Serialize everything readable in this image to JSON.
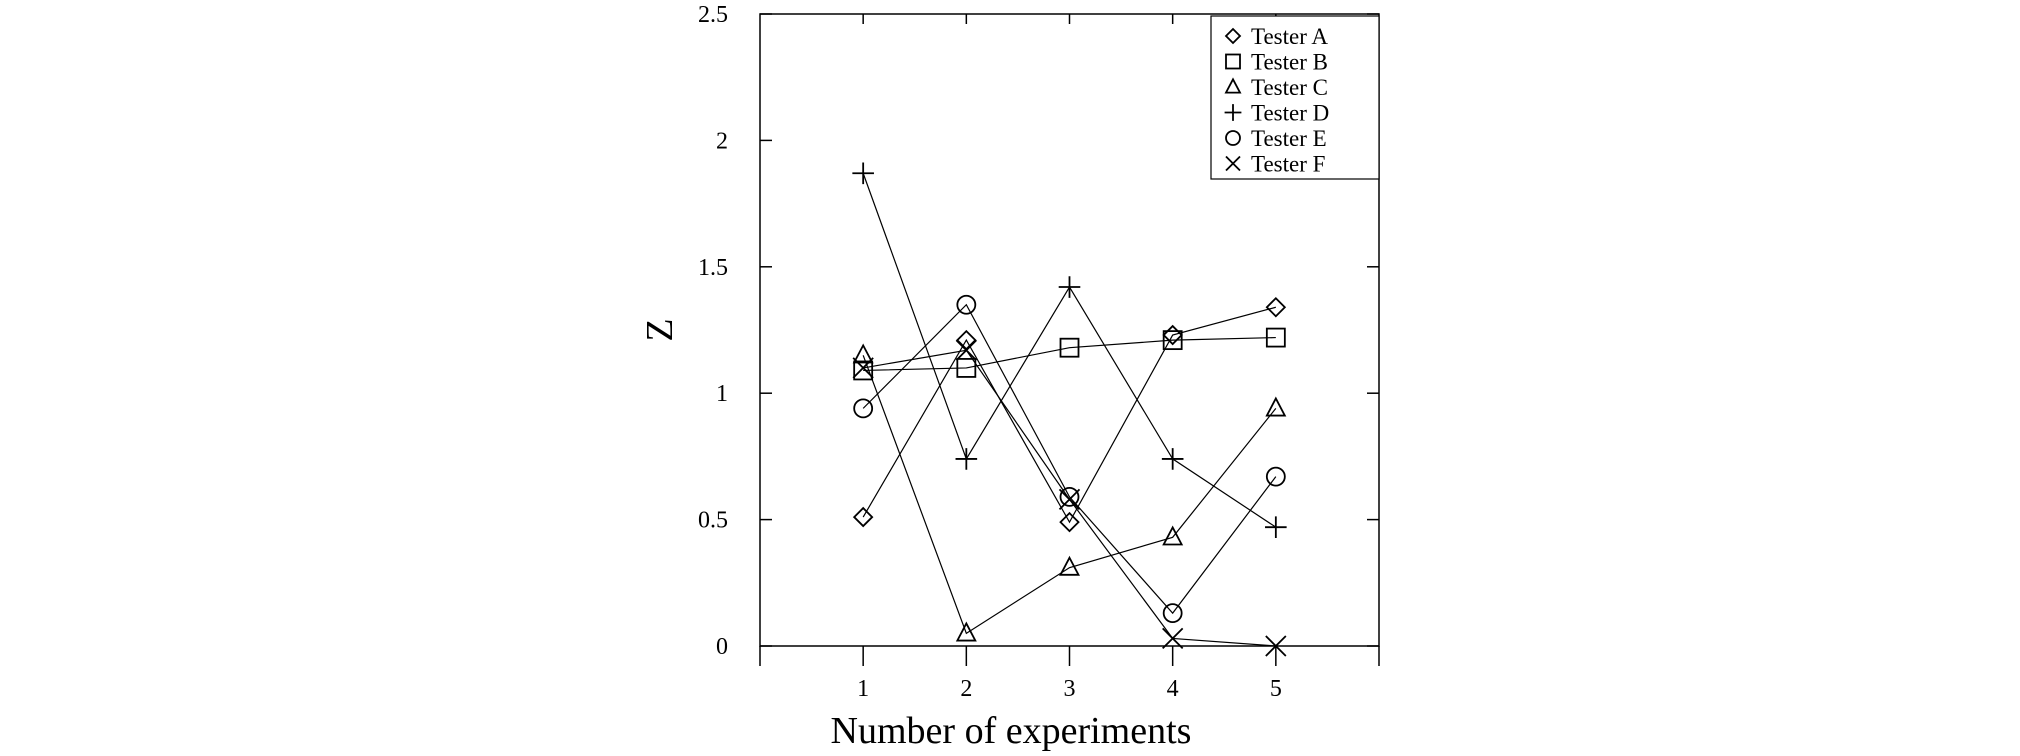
{
  "chart_data": {
    "type": "line",
    "xlabel": "Number of experiments",
    "ylabel": "Z",
    "xlim": [
      0,
      6
    ],
    "ylim": [
      0,
      2.5
    ],
    "x_ticks": [
      1,
      2,
      3,
      4,
      5
    ],
    "y_ticks": [
      0,
      0.5,
      1,
      1.5,
      2,
      2.5
    ],
    "x_tick_labels": [
      "1",
      "2",
      "3",
      "4",
      "5"
    ],
    "y_tick_labels": [
      "0",
      "0.5",
      "1",
      "1.5",
      "2",
      "2.5"
    ],
    "grid": false,
    "legend_position": "top-right",
    "x": [
      1,
      2,
      3,
      4,
      5
    ],
    "series": [
      {
        "name": "Tester A",
        "marker": "diamond",
        "values": [
          0.51,
          1.21,
          0.49,
          1.23,
          1.34
        ]
      },
      {
        "name": "Tester B",
        "marker": "square",
        "values": [
          1.09,
          1.1,
          1.18,
          1.21,
          1.22
        ]
      },
      {
        "name": "Tester C",
        "marker": "triangle",
        "values": [
          1.15,
          0.05,
          0.31,
          0.43,
          0.94
        ]
      },
      {
        "name": "Tester D",
        "marker": "plus",
        "values": [
          1.87,
          0.74,
          1.42,
          0.74,
          0.47
        ]
      },
      {
        "name": "Tester E",
        "marker": "circle",
        "values": [
          0.94,
          1.35,
          0.59,
          0.13,
          0.67
        ]
      },
      {
        "name": "Tester F",
        "marker": "x",
        "values": [
          1.1,
          1.17,
          0.58,
          0.03,
          0.0
        ]
      }
    ]
  }
}
